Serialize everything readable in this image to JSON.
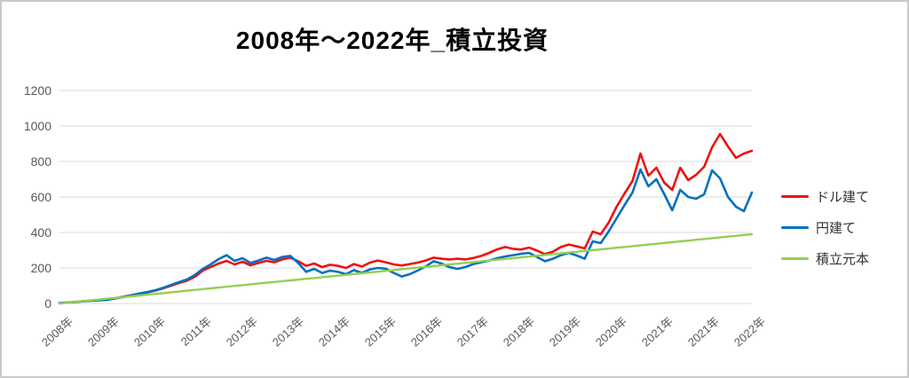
{
  "chart_data": {
    "type": "line",
    "title": "2008年～2022年_積立投資",
    "ylim": [
      0,
      1200
    ],
    "y_ticks": [
      0,
      200,
      400,
      600,
      800,
      1000,
      1200
    ],
    "x_tick_labels": [
      "2008年",
      "2009年",
      "2010年",
      "2011年",
      "2012年",
      "2013年",
      "2014年",
      "2015年",
      "2016年",
      "2017年",
      "2018年",
      "2019年",
      "2020年",
      "2021年",
      "2021年",
      "2022年"
    ],
    "grid": true,
    "legend_position": "right",
    "series": [
      {
        "name": "ドル建て",
        "color": "#ee1111",
        "values": [
          2,
          5,
          9,
          13,
          16,
          20,
          22,
          30,
          38,
          46,
          55,
          62,
          72,
          85,
          100,
          115,
          128,
          150,
          185,
          205,
          225,
          240,
          220,
          235,
          215,
          228,
          240,
          232,
          248,
          258,
          238,
          212,
          225,
          205,
          218,
          212,
          200,
          222,
          208,
          230,
          242,
          232,
          220,
          214,
          222,
          230,
          242,
          258,
          252,
          248,
          252,
          248,
          256,
          268,
          285,
          305,
          318,
          308,
          304,
          315,
          298,
          278,
          292,
          318,
          332,
          322,
          310,
          405,
          390,
          455,
          545,
          620,
          690,
          845,
          720,
          765,
          680,
          640,
          765,
          695,
          725,
          770,
          880,
          955,
          885,
          820,
          845,
          860
        ]
      },
      {
        "name": "円建て",
        "color": "#0070c0",
        "values": [
          2,
          5,
          8,
          12,
          15,
          18,
          20,
          28,
          36,
          45,
          56,
          64,
          74,
          88,
          104,
          120,
          135,
          160,
          195,
          220,
          250,
          272,
          240,
          255,
          228,
          242,
          258,
          245,
          262,
          268,
          228,
          178,
          195,
          172,
          185,
          178,
          165,
          188,
          172,
          192,
          200,
          196,
          172,
          152,
          165,
          185,
          208,
          238,
          225,
          205,
          195,
          205,
          222,
          232,
          242,
          255,
          265,
          272,
          280,
          285,
          262,
          238,
          252,
          272,
          285,
          270,
          252,
          350,
          340,
          405,
          480,
          555,
          625,
          755,
          660,
          700,
          615,
          525,
          640,
          600,
          590,
          615,
          750,
          705,
          600,
          545,
          520,
          625
        ]
      },
      {
        "name": "積立元本",
        "color": "#92d050",
        "values": [
          0,
          4,
          9,
          13,
          18,
          22,
          27,
          31,
          36,
          40,
          45,
          49,
          54,
          58,
          63,
          67,
          72,
          76,
          81,
          85,
          90,
          94,
          99,
          103,
          108,
          112,
          117,
          121,
          126,
          130,
          134,
          139,
          143,
          148,
          152,
          157,
          161,
          166,
          170,
          175,
          179,
          184,
          188,
          193,
          197,
          202,
          206,
          211,
          215,
          220,
          224,
          229,
          233,
          238,
          242,
          247,
          251,
          255,
          260,
          264,
          269,
          273,
          278,
          282,
          287,
          291,
          296,
          300,
          305,
          309,
          314,
          318,
          323,
          327,
          332,
          336,
          341,
          345,
          350,
          354,
          359,
          363,
          368,
          372,
          377,
          381,
          386,
          390
        ]
      }
    ]
  },
  "styles": {
    "grid_color": "#d9d9d9",
    "axis_text_color": "#595959",
    "title_color": "#000000",
    "frame_border_color": "#c9c9c9",
    "background": "#ffffff"
  }
}
